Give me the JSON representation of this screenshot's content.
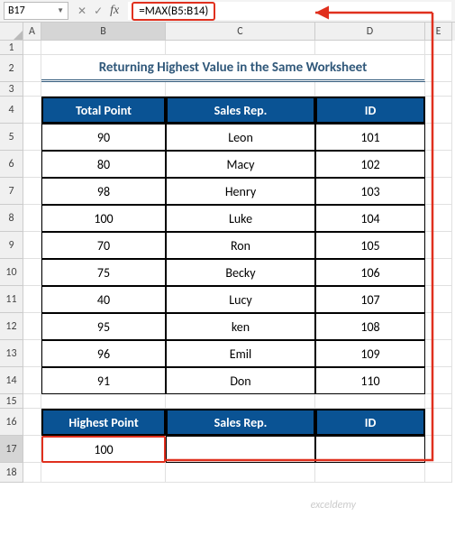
{
  "name_box": "B17",
  "formula": "=MAX(B5:B14)",
  "columns": [
    "A",
    "B",
    "C",
    "D",
    "E"
  ],
  "title": "Returning Highest Value in the Same Worksheet",
  "headers": {
    "b": "Total Point",
    "c": "Sales Rep.",
    "d": "ID"
  },
  "rows": [
    {
      "point": "90",
      "rep": "Leon",
      "id": "101"
    },
    {
      "point": "80",
      "rep": "Macy",
      "id": "102"
    },
    {
      "point": "98",
      "rep": "Henry",
      "id": "103"
    },
    {
      "point": "100",
      "rep": "Luke",
      "id": "104"
    },
    {
      "point": "70",
      "rep": "Ron",
      "id": "105"
    },
    {
      "point": "75",
      "rep": "Becky",
      "id": "106"
    },
    {
      "point": "40",
      "rep": "Lucy",
      "id": "107"
    },
    {
      "point": "95",
      "rep": "ken",
      "id": "108"
    },
    {
      "point": "96",
      "rep": "Emil",
      "id": "109"
    },
    {
      "point": "91",
      "rep": "Don",
      "id": "110"
    }
  ],
  "result_headers": {
    "b": "Highest Point",
    "c": "Sales Rep.",
    "d": "ID"
  },
  "result_value": "100",
  "watermark": "exceldemy",
  "style": {
    "header_bg": "#0a5394",
    "header_fg": "#ffffff",
    "title_color": "#30587a",
    "annot_color": "#e0301e",
    "grid_border": "#e0e0e0",
    "col_widths": {
      "A": 20,
      "B": 138,
      "C": 166,
      "D": 122,
      "E": 30
    },
    "row_heights": {
      "small": 16,
      "normal": 30
    }
  }
}
